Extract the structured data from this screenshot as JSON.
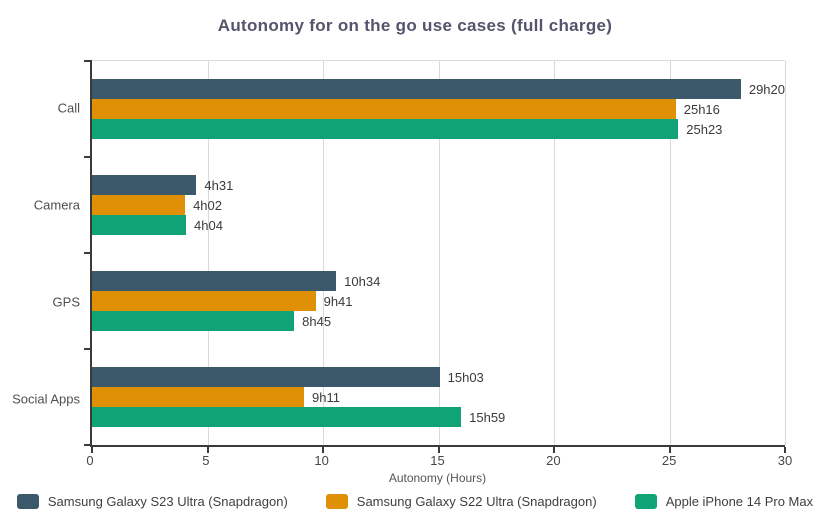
{
  "title": "Autonomy for on the go use cases (full charge)",
  "colors": {
    "series_1": "#3c596b",
    "series_2": "#e09007",
    "series_3": "#0fa375",
    "grid": "#d9d9d9",
    "axis": "#3a3a3a",
    "title_text": "#54546d"
  },
  "chart_data": {
    "type": "bar",
    "orientation": "horizontal",
    "title": "Autonomy for on the go use cases (full charge)",
    "categories": [
      "Call",
      "Camera",
      "GPS",
      "Social Apps"
    ],
    "series": [
      {
        "name": "Samsung Galaxy S23 Ultra (Snapdragon)",
        "color": "#3c596b",
        "labels": [
          "29h20",
          "4h31",
          "10h34",
          "15h03"
        ],
        "values_hours": [
          29.33,
          4.52,
          10.57,
          15.05
        ]
      },
      {
        "name": "Samsung Galaxy S22 Ultra (Snapdragon)",
        "color": "#e09007",
        "labels": [
          "25h16",
          "4h02",
          "9h41",
          "9h11"
        ],
        "values_hours": [
          25.27,
          4.03,
          9.68,
          9.18
        ]
      },
      {
        "name": "Apple iPhone 14 Pro Max",
        "color": "#0fa375",
        "labels": [
          "25h23",
          "4h04",
          "8h45",
          "15h59"
        ],
        "values_hours": [
          25.38,
          4.07,
          8.75,
          15.98
        ]
      }
    ],
    "xlabel": "Autonomy (Hours)",
    "xlim": [
      0,
      30
    ],
    "xticks": [
      0,
      5,
      10,
      15,
      20,
      25,
      30
    ],
    "xtick_labels": [
      "0",
      "5",
      "10",
      "15",
      "20",
      "25",
      "30"
    ],
    "grid": true,
    "legend_position": "bottom"
  }
}
